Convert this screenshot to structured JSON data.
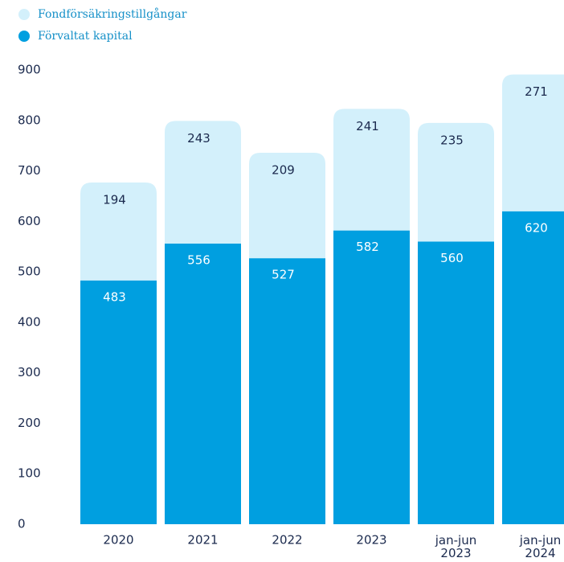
{
  "chart_data": {
    "type": "stacked_bar",
    "categories": [
      "2020",
      "2021",
      "2022",
      "2023",
      "jan-jun 2023",
      "jan-jun 2024"
    ],
    "series": [
      {
        "name": "Förvaltat kapital",
        "color": "#009fe0",
        "values": [
          483,
          556,
          527,
          582,
          560,
          620
        ]
      },
      {
        "name": "Fondförsäkringstillgångar",
        "color": "#d3f0fb",
        "values": [
          194,
          243,
          209,
          241,
          235,
          271
        ]
      }
    ],
    "ylim": [
      0,
      900
    ],
    "yticks": [
      0,
      100,
      200,
      300,
      400,
      500,
      600,
      700,
      800,
      900
    ],
    "grid": false,
    "legend": "top-left"
  }
}
